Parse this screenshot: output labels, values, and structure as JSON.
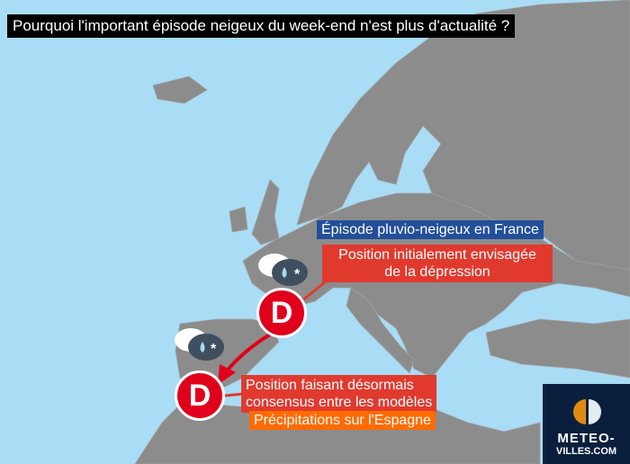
{
  "title": "Pourquoi l'important épisode neigeux du week-end n'est plus d'actualité ?",
  "labels": {
    "france_episode": "Épisode pluvio-neigeux en France",
    "initial_position_line1": "Position initialement envisagée",
    "initial_position_line2": "de la dépression",
    "consensus_line1": "Position faisant désormais",
    "consensus_line2": "consensus entre les modèles",
    "spain_precip": "Précipitations sur l'Espagne"
  },
  "markers": {
    "depression_initial": "D",
    "depression_consensus": "D"
  },
  "icons": [
    "rain-snow-cloud-icon",
    "rain-snow-cloud-icon",
    "arrow-icon"
  ],
  "logo": {
    "line1": "METEO-",
    "line2": "VILLES.COM"
  },
  "colors": {
    "sea": "#a9dcf5",
    "land": "#8c8c8c",
    "red": "#e03a2f",
    "blue": "#234f9a",
    "orange": "#ff6b00",
    "logo_bg": "#0a1f3d"
  }
}
